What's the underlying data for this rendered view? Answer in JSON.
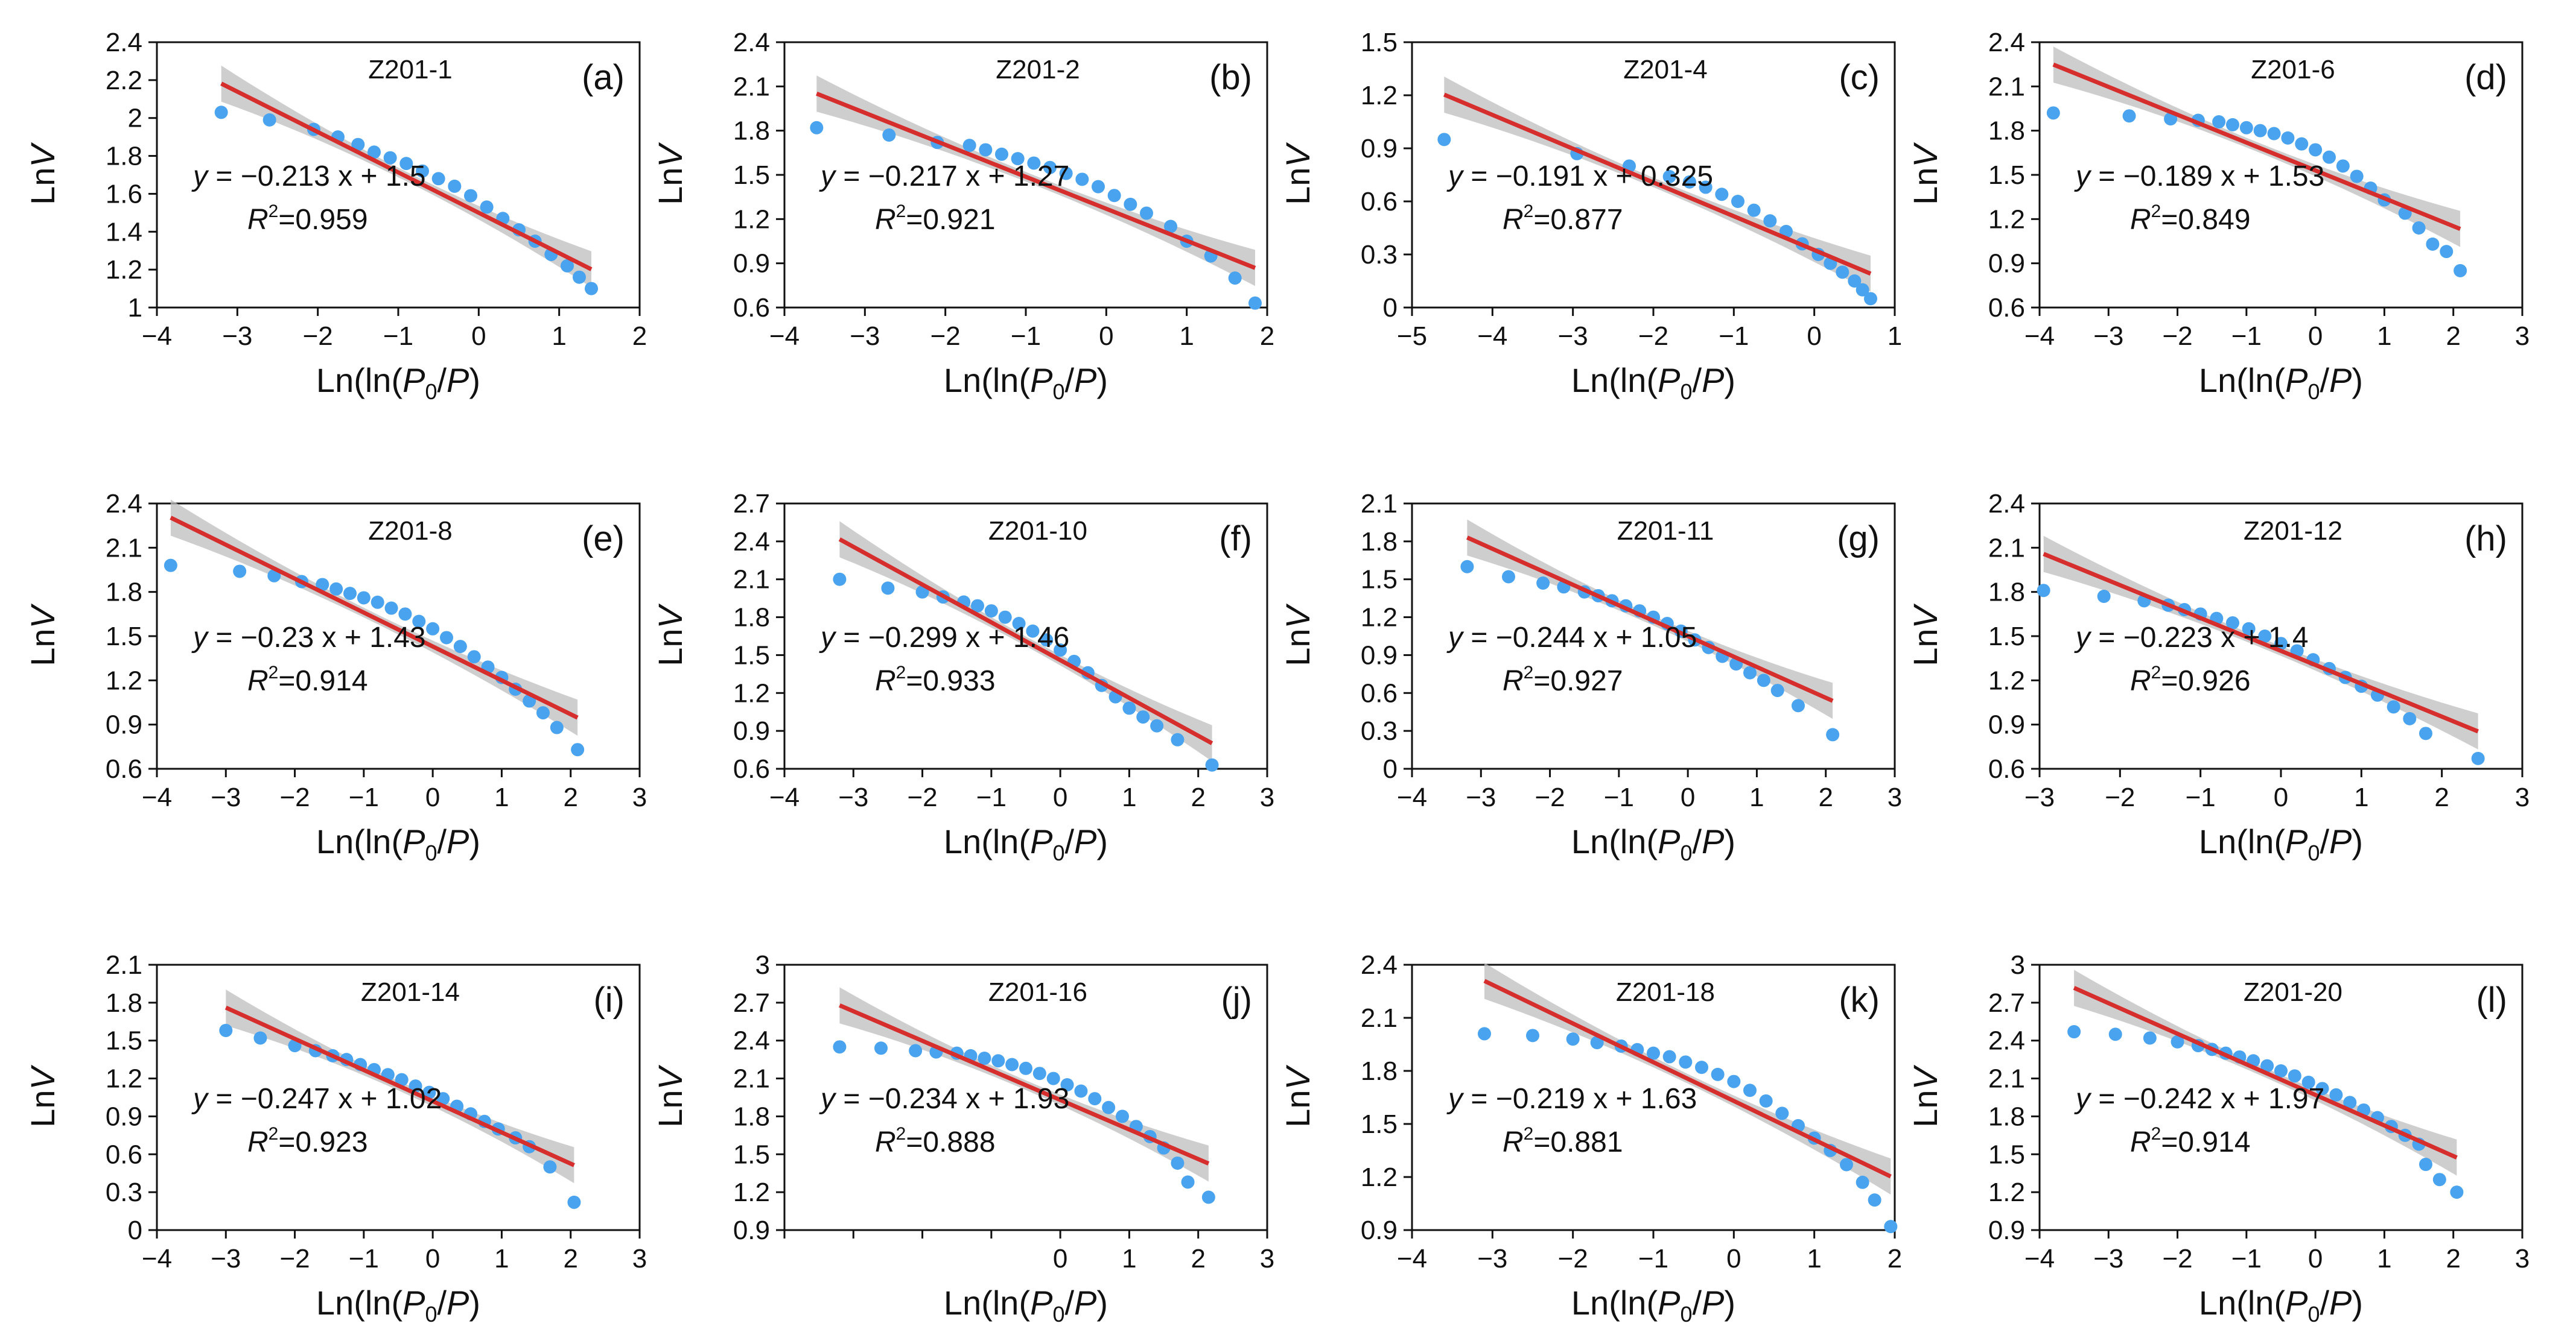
{
  "colors": {
    "points": "#4aa3ee",
    "fit_line": "#d62d2d",
    "confidence_band": "#bdbdbd",
    "frame": "#111111"
  },
  "chart_data": [
    {
      "type": "scatter",
      "panel": "(a)",
      "sample": "Z201-1",
      "xlabel": "Ln(ln(P0/P)",
      "ylabel": "LnV",
      "xlim": [
        -4,
        2
      ],
      "ylim": [
        1,
        2.4
      ],
      "xticks": [
        "−4",
        "−3",
        "−2",
        "−1",
        "0",
        "1",
        "2"
      ],
      "yticks": [
        "1",
        "1.2",
        "1.4",
        "1.6",
        "1.8",
        "2",
        "2.2",
        "2.4"
      ],
      "x": [
        -3.2,
        -2.6,
        -2.05,
        -1.75,
        -1.5,
        -1.3,
        -1.1,
        -0.9,
        -0.7,
        -0.5,
        -0.3,
        -0.1,
        0.1,
        0.3,
        0.5,
        0.7,
        0.9,
        1.1,
        1.25,
        1.4
      ],
      "y": [
        2.03,
        1.99,
        1.94,
        1.9,
        1.86,
        1.82,
        1.79,
        1.76,
        1.72,
        1.68,
        1.64,
        1.59,
        1.53,
        1.47,
        1.41,
        1.35,
        1.28,
        1.22,
        1.16,
        1.1
      ],
      "fit": {
        "slope": -0.213,
        "intercept": 1.5,
        "x_range": [
          -3.2,
          1.4
        ]
      },
      "equation": {
        "y": "y",
        "rest": " = −0.213 x + 1.5"
      },
      "r2": {
        "R": "R",
        "sup": "2",
        "rest": "=0.959"
      }
    },
    {
      "type": "scatter",
      "panel": "(b)",
      "sample": "Z201-2",
      "xlabel": "Ln(ln(P0/P)",
      "ylabel": "LnV",
      "xlim": [
        -4,
        2
      ],
      "ylim": [
        0.6,
        2.4
      ],
      "xticks": [
        "−4",
        "−3",
        "−2",
        "−1",
        "0",
        "1",
        "2"
      ],
      "yticks": [
        "0.6",
        "0.9",
        "1.2",
        "1.5",
        "1.8",
        "2.1",
        "2.4"
      ],
      "x": [
        -3.6,
        -2.7,
        -2.1,
        -1.7,
        -1.5,
        -1.3,
        -1.1,
        -0.9,
        -0.7,
        -0.5,
        -0.3,
        -0.1,
        0.1,
        0.3,
        0.5,
        0.8,
        1.0,
        1.3,
        1.6,
        1.85
      ],
      "y": [
        1.82,
        1.77,
        1.72,
        1.7,
        1.67,
        1.64,
        1.61,
        1.58,
        1.55,
        1.51,
        1.47,
        1.42,
        1.36,
        1.3,
        1.24,
        1.15,
        1.05,
        0.95,
        0.8,
        0.63
      ],
      "fit": {
        "slope": -0.217,
        "intercept": 1.27,
        "x_range": [
          -3.6,
          1.85
        ]
      },
      "equation": {
        "y": "y",
        "rest": " = −0.217 x + 1.27"
      },
      "r2": {
        "R": "R",
        "sup": "2",
        "rest": "=0.921"
      }
    },
    {
      "type": "scatter",
      "panel": "(c)",
      "sample": "Z201-4",
      "xlabel": "Ln(ln(P0/P)",
      "ylabel": "LnV",
      "xlim": [
        -5,
        1
      ],
      "ylim": [
        0,
        1.5
      ],
      "xticks": [
        "−5",
        "−4",
        "−3",
        "−2",
        "−1",
        "0",
        "1"
      ],
      "yticks": [
        "0",
        "0.3",
        "0.6",
        "0.9",
        "1.2",
        "1.5"
      ],
      "x": [
        -4.6,
        -2.95,
        -2.3,
        -1.8,
        -1.55,
        -1.35,
        -1.15,
        -0.95,
        -0.75,
        -0.55,
        -0.35,
        -0.15,
        0.05,
        0.2,
        0.35,
        0.5,
        0.6,
        0.7
      ],
      "y": [
        0.95,
        0.87,
        0.8,
        0.74,
        0.71,
        0.68,
        0.64,
        0.6,
        0.55,
        0.49,
        0.43,
        0.36,
        0.3,
        0.25,
        0.2,
        0.15,
        0.1,
        0.05
      ],
      "fit": {
        "slope": -0.191,
        "intercept": 0.325,
        "x_range": [
          -4.6,
          0.7
        ]
      },
      "equation": {
        "y": "y",
        "rest": " = −0.191 x + 0.325"
      },
      "r2": {
        "R": "R",
        "sup": "2",
        "rest": "=0.877"
      }
    },
    {
      "type": "scatter",
      "panel": "(d)",
      "sample": "Z201-6",
      "xlabel": "Ln(ln(P0/P)",
      "ylabel": "LnV",
      "xlim": [
        -4,
        3
      ],
      "ylim": [
        0.6,
        2.4
      ],
      "xticks": [
        "−4",
        "−3",
        "−2",
        "−1",
        "0",
        "1",
        "2",
        "3"
      ],
      "yticks": [
        "0.6",
        "0.9",
        "1.2",
        "1.5",
        "1.8",
        "2.1",
        "2.4"
      ],
      "x": [
        -3.8,
        -2.7,
        -2.1,
        -1.7,
        -1.4,
        -1.2,
        -1.0,
        -0.8,
        -0.6,
        -0.4,
        -0.2,
        0.0,
        0.2,
        0.4,
        0.6,
        0.8,
        1.0,
        1.3,
        1.5,
        1.7,
        1.9,
        2.1
      ],
      "y": [
        1.92,
        1.9,
        1.88,
        1.87,
        1.86,
        1.84,
        1.82,
        1.8,
        1.78,
        1.75,
        1.71,
        1.67,
        1.62,
        1.56,
        1.49,
        1.41,
        1.33,
        1.24,
        1.14,
        1.03,
        0.98,
        0.85
      ],
      "fit": {
        "slope": -0.189,
        "intercept": 1.53,
        "x_range": [
          -3.8,
          2.1
        ]
      },
      "equation": {
        "y": "y",
        "rest": " = −0.189  x + 1.53"
      },
      "r2": {
        "R": "R",
        "sup": "2",
        "rest": "=0.849"
      }
    },
    {
      "type": "scatter",
      "panel": "(e)",
      "sample": "Z201-8",
      "xlabel": "Ln(ln(P0/P)",
      "ylabel": "LnV",
      "xlim": [
        -4,
        3
      ],
      "ylim": [
        0.6,
        2.4
      ],
      "xticks": [
        "−4",
        "−3",
        "−2",
        "−1",
        "0",
        "1",
        "2",
        "3"
      ],
      "yticks": [
        "0.6",
        "0.9",
        "1.2",
        "1.5",
        "1.8",
        "2.1",
        "2.4"
      ],
      "x": [
        -3.8,
        -2.8,
        -2.3,
        -1.9,
        -1.6,
        -1.4,
        -1.2,
        -1.0,
        -0.8,
        -0.6,
        -0.4,
        -0.2,
        0.0,
        0.2,
        0.4,
        0.6,
        0.8,
        1.0,
        1.2,
        1.4,
        1.6,
        1.8,
        2.1
      ],
      "y": [
        1.98,
        1.94,
        1.91,
        1.87,
        1.85,
        1.82,
        1.79,
        1.76,
        1.73,
        1.69,
        1.65,
        1.6,
        1.55,
        1.49,
        1.43,
        1.36,
        1.29,
        1.22,
        1.14,
        1.06,
        0.98,
        0.88,
        0.73
      ],
      "fit": {
        "slope": -0.23,
        "intercept": 1.43,
        "x_range": [
          -3.8,
          2.1
        ]
      },
      "equation": {
        "y": "y",
        "rest": " = −0.23 x + 1.43"
      },
      "r2": {
        "R": "R",
        "sup": "2",
        "rest": "=0.914"
      }
    },
    {
      "type": "scatter",
      "panel": "(f)",
      "sample": "Z201-10",
      "xlabel": "Ln(ln(P0/P)",
      "ylabel": "LnV",
      "xlim": [
        -4,
        3
      ],
      "ylim": [
        0.6,
        2.7
      ],
      "xticks": [
        "−4",
        "−3",
        "−2",
        "−1",
        "0",
        "1",
        "2",
        "3"
      ],
      "yticks": [
        "0.6",
        "0.9",
        "1.2",
        "1.5",
        "1.8",
        "2.1",
        "2.4",
        "2.7"
      ],
      "x": [
        -3.2,
        -2.5,
        -2.0,
        -1.7,
        -1.4,
        -1.2,
        -1.0,
        -0.8,
        -0.6,
        -0.4,
        -0.2,
        0.0,
        0.2,
        0.4,
        0.6,
        0.8,
        1.0,
        1.2,
        1.4,
        1.7,
        2.2
      ],
      "y": [
        2.1,
        2.03,
        2.0,
        1.96,
        1.92,
        1.89,
        1.85,
        1.8,
        1.75,
        1.69,
        1.62,
        1.54,
        1.45,
        1.36,
        1.26,
        1.17,
        1.08,
        1.01,
        0.94,
        0.83,
        0.63
      ],
      "fit": {
        "slope": -0.299,
        "intercept": 1.46,
        "x_range": [
          -3.2,
          2.2
        ]
      },
      "equation": {
        "y": "y",
        "rest": " = −0.299  x + 1.46"
      },
      "r2": {
        "R": "R",
        "sup": "2",
        "rest": "=0.933"
      }
    },
    {
      "type": "scatter",
      "panel": "(g)",
      "sample": "Z201-11",
      "xlabel": "Ln(ln(P0/P)",
      "ylabel": "LnV",
      "xlim": [
        -4,
        3
      ],
      "ylim": [
        0,
        2.1
      ],
      "xticks": [
        "−4",
        "−3",
        "−2",
        "−1",
        "0",
        "1",
        "2",
        "3"
      ],
      "yticks": [
        "0",
        "0.3",
        "0.6",
        "0.9",
        "1.2",
        "1.5",
        "1.8",
        "2.1"
      ],
      "x": [
        -3.2,
        -2.6,
        -2.1,
        -1.8,
        -1.5,
        -1.3,
        -1.1,
        -0.9,
        -0.7,
        -0.5,
        -0.3,
        -0.1,
        0.1,
        0.3,
        0.5,
        0.7,
        0.9,
        1.1,
        1.3,
        1.6,
        2.1
      ],
      "y": [
        1.6,
        1.52,
        1.47,
        1.44,
        1.4,
        1.37,
        1.33,
        1.29,
        1.25,
        1.2,
        1.15,
        1.09,
        1.02,
        0.96,
        0.89,
        0.83,
        0.76,
        0.7,
        0.62,
        0.5,
        0.27
      ],
      "fit": {
        "slope": -0.244,
        "intercept": 1.05,
        "x_range": [
          -3.2,
          2.1
        ]
      },
      "equation": {
        "y": "y",
        "rest": " = −0.244 x + 1.05"
      },
      "r2": {
        "R": "R",
        "sup": "2",
        "rest": "=0.927"
      }
    },
    {
      "type": "scatter",
      "panel": "(h)",
      "sample": "Z201-12",
      "xlabel": "Ln(ln(P0/P)",
      "ylabel": "LnV",
      "xlim": [
        -3,
        3
      ],
      "ylim": [
        0.6,
        2.4
      ],
      "xticks": [
        "−3",
        "−2",
        "−1",
        "0",
        "1",
        "2",
        "3"
      ],
      "yticks": [
        "0.6",
        "0.9",
        "1.2",
        "1.5",
        "1.8",
        "2.1",
        "2.4"
      ],
      "x": [
        -2.95,
        -2.2,
        -1.7,
        -1.4,
        -1.2,
        -1.0,
        -0.8,
        -0.6,
        -0.4,
        -0.2,
        0.0,
        0.2,
        0.4,
        0.6,
        0.8,
        1.0,
        1.2,
        1.4,
        1.6,
        1.8,
        2.45
      ],
      "y": [
        1.81,
        1.77,
        1.74,
        1.71,
        1.68,
        1.65,
        1.62,
        1.59,
        1.55,
        1.5,
        1.45,
        1.4,
        1.34,
        1.28,
        1.22,
        1.16,
        1.1,
        1.02,
        0.94,
        0.84,
        0.67
      ],
      "fit": {
        "slope": -0.223,
        "intercept": 1.4,
        "x_range": [
          -2.95,
          2.45
        ]
      },
      "equation": {
        "y": "y",
        "rest": " = −0.223  x + 1.4"
      },
      "r2": {
        "R": "R",
        "sup": "2",
        "rest": "=0.926"
      }
    },
    {
      "type": "scatter",
      "panel": "(i)",
      "sample": "Z201-14",
      "xlabel": "Ln(ln(P0/P)",
      "ylabel": "LnV",
      "xlim": [
        -4,
        3
      ],
      "ylim": [
        0,
        2.1
      ],
      "xticks": [
        "−4",
        "−3",
        "−2",
        "−1",
        "0",
        "1",
        "2",
        "3"
      ],
      "yticks": [
        "0",
        "0.3",
        "0.6",
        "0.9",
        "1.2",
        "1.5",
        "1.8",
        "2.1"
      ],
      "x": [
        -3.0,
        -2.5,
        -2.0,
        -1.7,
        -1.45,
        -1.25,
        -1.05,
        -0.85,
        -0.65,
        -0.45,
        -0.25,
        -0.05,
        0.15,
        0.35,
        0.55,
        0.75,
        0.95,
        1.2,
        1.4,
        1.7,
        2.05
      ],
      "y": [
        1.58,
        1.52,
        1.46,
        1.42,
        1.38,
        1.35,
        1.31,
        1.27,
        1.23,
        1.19,
        1.14,
        1.09,
        1.04,
        0.98,
        0.92,
        0.86,
        0.8,
        0.73,
        0.66,
        0.5,
        0.22
      ],
      "fit": {
        "slope": -0.247,
        "intercept": 1.02,
        "x_range": [
          -3.0,
          2.05
        ]
      },
      "equation": {
        "y": "y",
        "rest": " = −0.247  x + 1.02"
      },
      "r2": {
        "R": "R",
        "sup": "2",
        "rest": "=0.923"
      }
    },
    {
      "type": "scatter",
      "panel": "(j)",
      "sample": "Z201-16",
      "xlabel": "Ln(ln(P0/P)",
      "ylabel": "LnV",
      "xlim": [
        -4,
        3
      ],
      "ylim": [
        0.9,
        3
      ],
      "xticks": [
        "",
        "",
        "",
        "",
        "0",
        "1",
        "2",
        "3"
      ],
      "yticks": [
        "0.9",
        "1.2",
        "1.5",
        "1.8",
        "2.1",
        "2.4",
        "2.7",
        "3"
      ],
      "x": [
        -3.2,
        -2.6,
        -2.1,
        -1.8,
        -1.5,
        -1.3,
        -1.1,
        -0.9,
        -0.7,
        -0.5,
        -0.3,
        -0.1,
        0.1,
        0.3,
        0.5,
        0.7,
        0.9,
        1.1,
        1.3,
        1.5,
        1.7,
        1.85,
        2.15
      ],
      "y": [
        2.35,
        2.34,
        2.32,
        2.31,
        2.3,
        2.28,
        2.26,
        2.24,
        2.21,
        2.18,
        2.14,
        2.1,
        2.05,
        2.0,
        1.94,
        1.87,
        1.8,
        1.72,
        1.64,
        1.55,
        1.43,
        1.28,
        1.16
      ],
      "fit": {
        "slope": -0.234,
        "intercept": 1.93,
        "x_range": [
          -3.2,
          2.15
        ]
      },
      "equation": {
        "y": "y",
        "rest": " = −0.234  x + 1.93"
      },
      "r2": {
        "R": "R",
        "sup": "2",
        "rest": "=0.888"
      }
    },
    {
      "type": "scatter",
      "panel": "(k)",
      "sample": "Z201-18",
      "xlabel": "Ln(ln(P0/P)",
      "ylabel": "LnV",
      "xlim": [
        -4,
        2
      ],
      "ylim": [
        0.9,
        2.4
      ],
      "xticks": [
        "−4",
        "−3",
        "−2",
        "−1",
        "0",
        "1",
        "2"
      ],
      "yticks": [
        "0.9",
        "1.2",
        "1.5",
        "1.8",
        "2.1",
        "2.4"
      ],
      "x": [
        -3.1,
        -2.5,
        -2.0,
        -1.7,
        -1.4,
        -1.2,
        -1.0,
        -0.8,
        -0.6,
        -0.4,
        -0.2,
        0.0,
        0.2,
        0.4,
        0.6,
        0.8,
        1.0,
        1.2,
        1.4,
        1.6,
        1.75,
        1.95
      ],
      "y": [
        2.01,
        2.0,
        1.98,
        1.96,
        1.94,
        1.92,
        1.9,
        1.88,
        1.85,
        1.82,
        1.78,
        1.74,
        1.69,
        1.63,
        1.56,
        1.49,
        1.42,
        1.35,
        1.27,
        1.17,
        1.07,
        0.92
      ],
      "fit": {
        "slope": -0.219,
        "intercept": 1.63,
        "x_range": [
          -3.1,
          1.95
        ]
      },
      "equation": {
        "y": "y",
        "rest": " = −0.219  x + 1.63"
      },
      "r2": {
        "R": "R",
        "sup": "2",
        "rest": "=0.881"
      }
    },
    {
      "type": "scatter",
      "panel": "(l)",
      "sample": "Z201-20",
      "xlabel": "Ln(ln(P0/P)",
      "ylabel": "LnV",
      "xlim": [
        -4,
        3
      ],
      "ylim": [
        0.9,
        3
      ],
      "xticks": [
        "−4",
        "−3",
        "−2",
        "−1",
        "0",
        "1",
        "2",
        "3"
      ],
      "yticks": [
        "0.9",
        "1.2",
        "1.5",
        "1.8",
        "2.1",
        "2.4",
        "2.7",
        "3"
      ],
      "x": [
        -3.5,
        -2.9,
        -2.4,
        -2.0,
        -1.7,
        -1.5,
        -1.3,
        -1.1,
        -0.9,
        -0.7,
        -0.5,
        -0.3,
        -0.1,
        0.1,
        0.3,
        0.5,
        0.7,
        0.9,
        1.1,
        1.3,
        1.5,
        1.6,
        1.8,
        2.05
      ],
      "y": [
        2.47,
        2.45,
        2.42,
        2.39,
        2.36,
        2.33,
        2.3,
        2.27,
        2.24,
        2.2,
        2.16,
        2.12,
        2.07,
        2.02,
        1.97,
        1.91,
        1.85,
        1.79,
        1.72,
        1.65,
        1.58,
        1.42,
        1.3,
        1.2
      ],
      "fit": {
        "slope": -0.242,
        "intercept": 1.97,
        "x_range": [
          -3.5,
          2.05
        ]
      },
      "equation": {
        "y": "y",
        "rest": " = −0.242 x + 1.97"
      },
      "r2": {
        "R": "R",
        "sup": "2",
        "rest": "=0.914"
      }
    }
  ]
}
